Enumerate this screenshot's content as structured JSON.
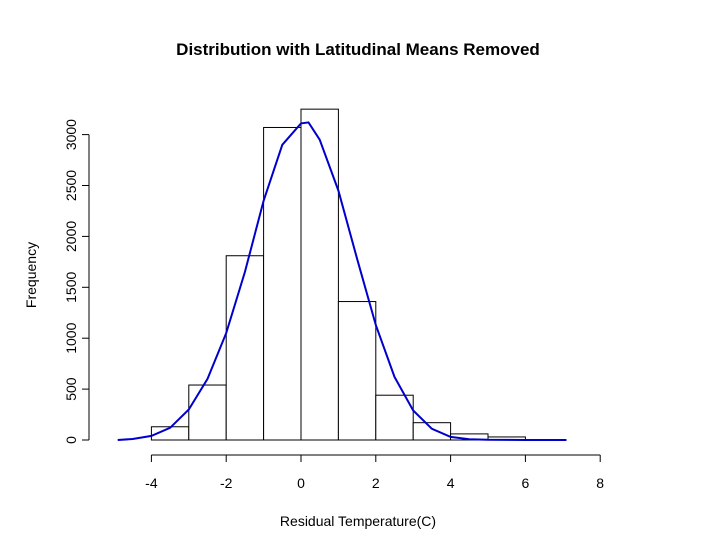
{
  "chart_data": {
    "type": "bar",
    "title": "Distribution with Latitudinal Means Removed",
    "xlabel": "Residual Temperature(C)",
    "ylabel": "Frequency",
    "xlim": [
      -5,
      8
    ],
    "ylim": [
      0,
      3250
    ],
    "x_ticks": [
      -4,
      -2,
      0,
      2,
      4,
      6,
      8
    ],
    "y_ticks": [
      0,
      500,
      1000,
      1500,
      2000,
      2500,
      3000
    ],
    "bins": [
      {
        "start": -4,
        "end": -3,
        "value": 130
      },
      {
        "start": -3,
        "end": -2,
        "value": 540
      },
      {
        "start": -2,
        "end": -1,
        "value": 1810
      },
      {
        "start": -1,
        "end": 0,
        "value": 3070
      },
      {
        "start": 0,
        "end": 1,
        "value": 3250
      },
      {
        "start": 1,
        "end": 2,
        "value": 1360
      },
      {
        "start": 2,
        "end": 3,
        "value": 440
      },
      {
        "start": 3,
        "end": 4,
        "value": 170
      },
      {
        "start": 4,
        "end": 5,
        "value": 60
      },
      {
        "start": 5,
        "end": 6,
        "value": 30
      }
    ],
    "curve": {
      "color": "#0000cc",
      "points": [
        [
          -4.9,
          0
        ],
        [
          -4.5,
          10
        ],
        [
          -4.0,
          40
        ],
        [
          -3.5,
          120
        ],
        [
          -3.0,
          300
        ],
        [
          -2.5,
          600
        ],
        [
          -2.0,
          1050
        ],
        [
          -1.5,
          1650
        ],
        [
          -1.0,
          2350
        ],
        [
          -0.5,
          2900
        ],
        [
          0.0,
          3110
        ],
        [
          0.2,
          3120
        ],
        [
          0.5,
          2950
        ],
        [
          1.0,
          2450
        ],
        [
          1.5,
          1780
        ],
        [
          2.0,
          1130
        ],
        [
          2.5,
          620
        ],
        [
          3.0,
          290
        ],
        [
          3.5,
          110
        ],
        [
          4.0,
          30
        ],
        [
          4.5,
          8
        ],
        [
          5.0,
          2
        ],
        [
          6.0,
          0
        ],
        [
          7.1,
          0
        ]
      ]
    },
    "grid": false,
    "legend": "none"
  }
}
